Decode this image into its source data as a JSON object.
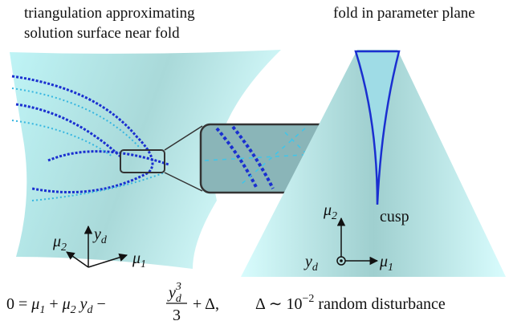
{
  "left_panel": {
    "title_lines": [
      "triangulation approximating",
      "solution surface near fold"
    ],
    "axes": {
      "y": {
        "base": "y",
        "sub": "d"
      },
      "mu2": {
        "base": "μ",
        "sub": "2"
      },
      "mu1": {
        "base": "μ",
        "sub": "1"
      }
    }
  },
  "right_panel": {
    "title": "fold in parameter plane",
    "cusp_label": "cusp",
    "axes": {
      "mu2": {
        "base": "μ",
        "sub": "2"
      },
      "yd": {
        "base": "y",
        "sub": "d"
      },
      "mu1": {
        "base": "μ",
        "sub": "1"
      }
    }
  },
  "equation": {
    "left": "0 =",
    "mu1": {
      "base": "μ",
      "sub": "1"
    },
    "plus": "+",
    "mu2": {
      "base": "μ",
      "sub": "2"
    },
    "yd": {
      "base": "y",
      "sub": "d"
    },
    "minus": "−",
    "numerator": {
      "base": "y",
      "sub": "d",
      "sup": "3"
    },
    "denominator": "3",
    "rest": "+ Δ,"
  },
  "note": {
    "prefix": "Δ ∼ 10",
    "exponent": "−2",
    "suffix": "random disturbance"
  }
}
